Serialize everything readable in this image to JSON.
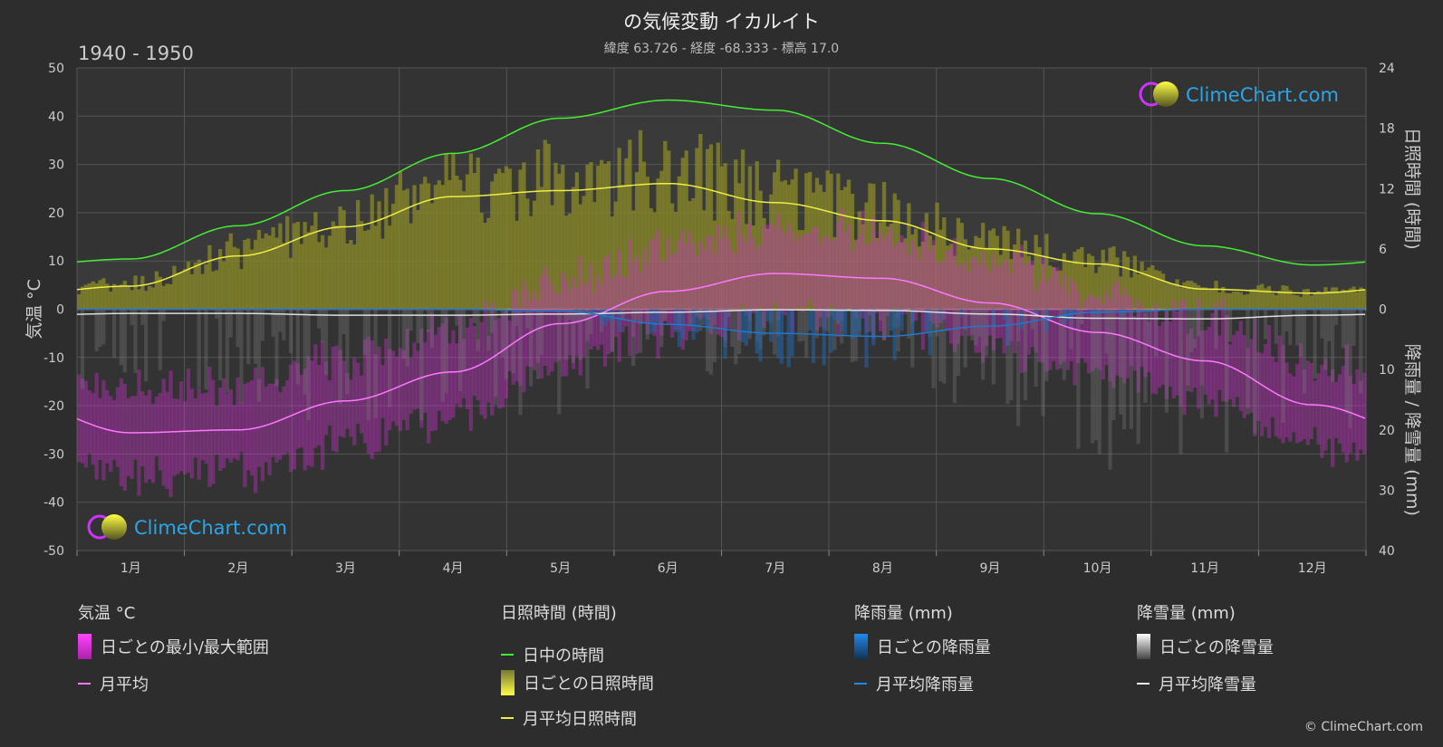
{
  "header": {
    "title": "の気候変動 イカルイト",
    "subtitle": "緯度 63.726 - 経度 -68.333 - 標高 17.0",
    "period": "1940 - 1950"
  },
  "watermark": {
    "text": "ClimeChart.com"
  },
  "copyright": "© ClimeChart.com",
  "colors": {
    "daylight": "#44ee33",
    "sunshine_line": "#eeee44",
    "sunshine_bars": "#9a9a2a",
    "temp_range": "#cc33cc",
    "temp_avg": "#ff77ff",
    "rain": "#2277cc",
    "snow": "#cccccc",
    "watermark": "#2aa6e8"
  },
  "legend": {
    "temp": {
      "header": "気温 °C",
      "range": "日ごとの最小/最大範囲",
      "avg": "月平均"
    },
    "sun": {
      "header": "日照時間 (時間)",
      "daylight": "日中の時間",
      "daily": "日ごとの日照時間",
      "avg": "月平均日照時間"
    },
    "rain": {
      "header": "降雨量 (mm)",
      "daily": "日ごとの降雨量",
      "avg": "月平均降雨量"
    },
    "snow": {
      "header": "降雪量 (mm)",
      "daily": "日ごとの降雪量",
      "avg": "月平均降雪量"
    }
  },
  "chart_data": {
    "type": "line",
    "categories": [
      "1月",
      "2月",
      "3月",
      "4月",
      "5月",
      "6月",
      "7月",
      "8月",
      "9月",
      "10月",
      "11月",
      "12月"
    ],
    "axes": {
      "left": {
        "label": "気温 °C",
        "range": [
          -50,
          50
        ],
        "ticks": [
          50,
          40,
          30,
          20,
          10,
          0,
          -10,
          -20,
          -30,
          -40,
          -50
        ]
      },
      "right_top": {
        "label": "日照時間 (時間)",
        "range": [
          0,
          24
        ],
        "ticks": [
          24,
          18,
          12,
          6,
          0
        ]
      },
      "right_bottom": {
        "label": "降雨量 / 降雪量 (mm)",
        "range": [
          0,
          40
        ],
        "ticks": [
          0,
          10,
          20,
          30,
          40
        ]
      }
    },
    "grid": true,
    "series": [
      {
        "name": "日中の時間",
        "axis": "sunshine_hours",
        "values": [
          5.0,
          8.3,
          11.8,
          15.5,
          19.0,
          20.8,
          19.8,
          16.5,
          13.0,
          9.5,
          6.3,
          4.4
        ]
      },
      {
        "name": "月平均日照時間",
        "axis": "sunshine_hours",
        "values": [
          2.3,
          5.3,
          8.2,
          11.2,
          11.8,
          12.5,
          10.6,
          8.8,
          6.0,
          4.5,
          2.0,
          1.6
        ]
      },
      {
        "name": "月平均",
        "axis": "temperature_c",
        "values": [
          -25.6,
          -25.0,
          -19.0,
          -13.0,
          -3.0,
          3.7,
          7.4,
          6.4,
          1.3,
          -4.8,
          -10.7,
          -19.8
        ]
      },
      {
        "name": "月平均降雨量",
        "axis": "precipitation_mm",
        "values": [
          0.0,
          0.0,
          0.0,
          0.0,
          0.3,
          2.5,
          4.0,
          4.5,
          2.8,
          0.5,
          0.0,
          0.0
        ]
      },
      {
        "name": "月平均降雪量",
        "axis": "precipitation_mm",
        "values": [
          0.7,
          0.7,
          1.0,
          1.0,
          0.8,
          0.5,
          0.1,
          0.2,
          0.8,
          1.5,
          1.6,
          1.0
        ]
      }
    ]
  }
}
